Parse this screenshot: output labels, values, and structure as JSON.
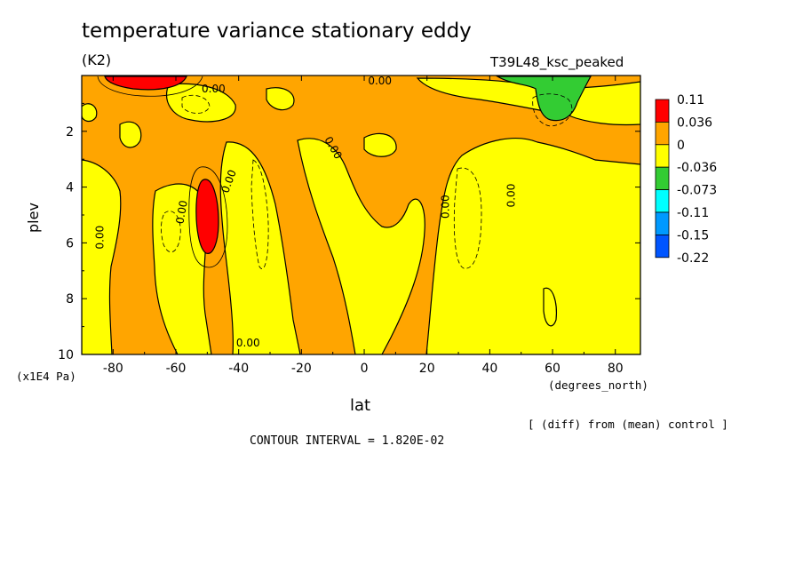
{
  "header": {
    "title": "temperature variance stationary eddy",
    "units": "(K2)",
    "run_label": "T39L48_ksc_peaked"
  },
  "footer": {
    "diff_note": "[ (diff) from (mean) control ]",
    "contour_interval": "CONTOUR INTERVAL = 1.820E-02"
  },
  "chart_data": {
    "type": "heatmap",
    "title": "temperature variance stationary eddy",
    "xlabel": "lat",
    "x_units": "(degrees_north)",
    "ylabel": "plev",
    "y_units": "(x1E4 Pa)",
    "xlim": [
      -90,
      88
    ],
    "ylim": [
      10,
      0
    ],
    "x_ticks": [
      -80,
      -60,
      -40,
      -20,
      0,
      20,
      40,
      60,
      80
    ],
    "y_ticks": [
      2,
      4,
      6,
      8,
      10
    ],
    "x_tick_labels": [
      "-80",
      "-60",
      "-40",
      "-20",
      "0",
      "20",
      "40",
      "60",
      "80"
    ],
    "y_tick_labels": [
      "2",
      "4",
      "6",
      "8",
      "10"
    ],
    "contour_interval": 0.0182,
    "colorbar": {
      "labels": [
        "0.11",
        "0.036",
        "0",
        "-0.036",
        "-0.073",
        "-0.11",
        "-0.15",
        "-0.22"
      ],
      "colors": [
        "#ff0000",
        "#ffa500",
        "#ffff00",
        "#33cc33",
        "#00ffff",
        "#0099ff",
        "#0055ff"
      ]
    },
    "contour_labels": [
      {
        "text": "0.00",
        "x": -48,
        "y": 0.5,
        "rotate": 0
      },
      {
        "text": "0.00",
        "x": 5,
        "y": 0.2,
        "rotate": 0
      },
      {
        "text": "0.00",
        "x": -84,
        "y": 5.8,
        "rotate": -90
      },
      {
        "text": "0.00",
        "x": -58,
        "y": 4.9,
        "rotate": -80
      },
      {
        "text": "0.00",
        "x": -43,
        "y": 3.8,
        "rotate": -70
      },
      {
        "text": "0.00",
        "x": -10,
        "y": 2.6,
        "rotate": 60
      },
      {
        "text": "0.00",
        "x": 26,
        "y": 4.7,
        "rotate": -90
      },
      {
        "text": "0.00",
        "x": 47,
        "y": 4.3,
        "rotate": -90
      },
      {
        "text": "0.00",
        "x": -37,
        "y": 9.6,
        "rotate": 0
      }
    ],
    "regions": [
      {
        "level": "0 to 0.036",
        "color": "#ffa500",
        "description": "background field"
      },
      {
        "level": "0.036 to 0.11",
        "color": "#ff0000",
        "lat_range": [
          -82,
          -63
        ],
        "plev_range": [
          0,
          0.4
        ]
      },
      {
        "level": "0.036 to 0.11",
        "color": "#ff0000",
        "lat_range": [
          -53,
          -45
        ],
        "plev_range": [
          3.7,
          6.3
        ]
      },
      {
        "level": "-0.036 to -0.073",
        "color": "#33cc33",
        "lat_range": [
          44,
          68
        ],
        "plev_range": [
          0,
          1.6
        ]
      }
    ]
  }
}
